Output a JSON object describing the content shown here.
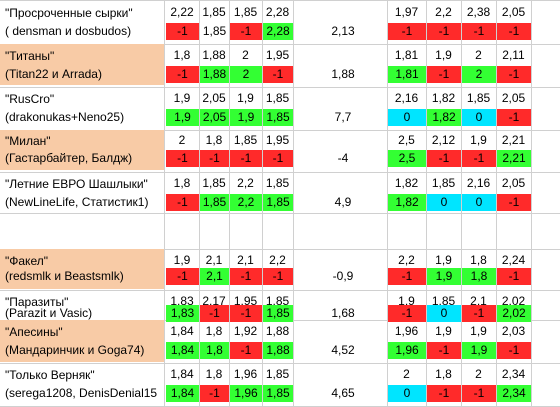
{
  "colors": {
    "orange": "#f8cba6",
    "red": "#ff2a2a",
    "green": "#33ff33",
    "cyan": "#00e5ff",
    "white": "#ffffff"
  },
  "teams": [
    {
      "name": "\"Просроченные сырки\"",
      "players": "( densman и dosbudos)",
      "highlight": false,
      "left_odds": [
        "2,22",
        "1,85",
        "1,85",
        "2,28"
      ],
      "left_results": [
        {
          "v": "-1",
          "c": "red"
        },
        {
          "v": "1,85",
          "c": "white"
        },
        {
          "v": "-1",
          "c": "red"
        },
        {
          "v": "2,28",
          "c": "green"
        }
      ],
      "total": "2,13",
      "right_odds": [
        "1,97",
        "2,2",
        "2,38",
        "2,05"
      ],
      "right_results": [
        {
          "v": "-1",
          "c": "red"
        },
        {
          "v": "-1",
          "c": "red"
        },
        {
          "v": "-1",
          "c": "red"
        },
        {
          "v": "-1",
          "c": "red"
        }
      ]
    },
    {
      "name": "\"Титаны\"",
      "players": "(Titan22 и Arrada)",
      "highlight": true,
      "left_odds": [
        "1,8",
        "1,88",
        "2",
        "1,95"
      ],
      "left_results": [
        {
          "v": "-1",
          "c": "red"
        },
        {
          "v": "1,88",
          "c": "green"
        },
        {
          "v": "2",
          "c": "green"
        },
        {
          "v": "-1",
          "c": "red"
        }
      ],
      "total": "1,88",
      "right_odds": [
        "1,81",
        "1,9",
        "2",
        "2,11"
      ],
      "right_results": [
        {
          "v": "1,81",
          "c": "green"
        },
        {
          "v": "-1",
          "c": "red"
        },
        {
          "v": "2",
          "c": "green"
        },
        {
          "v": "-1",
          "c": "red"
        }
      ]
    },
    {
      "name": "\"RusCro\"",
      "players": "(drakonukas+Neno25)",
      "highlight": false,
      "left_odds": [
        "1,9",
        "2,05",
        "1,9",
        "1,85"
      ],
      "left_results": [
        {
          "v": "1,9",
          "c": "green"
        },
        {
          "v": "2,05",
          "c": "green"
        },
        {
          "v": "1,9",
          "c": "green"
        },
        {
          "v": "1,85",
          "c": "green"
        }
      ],
      "total": "7,7",
      "right_odds": [
        "2,16",
        "1,82",
        "1,85",
        "2,05"
      ],
      "right_results": [
        {
          "v": "0",
          "c": "cyan"
        },
        {
          "v": "1,82",
          "c": "green"
        },
        {
          "v": "0",
          "c": "cyan"
        },
        {
          "v": "-1",
          "c": "red"
        }
      ]
    },
    {
      "name": "\"Милан\"",
      "players": "(Гастарбайтер, Балдж)",
      "highlight": true,
      "left_odds": [
        "2",
        "1,8",
        "1,85",
        "1,95"
      ],
      "left_results": [
        {
          "v": "-1",
          "c": "red"
        },
        {
          "v": "-1",
          "c": "red"
        },
        {
          "v": "-1",
          "c": "red"
        },
        {
          "v": "-1",
          "c": "red"
        }
      ],
      "total": "-4",
      "right_odds": [
        "2,5",
        "2,12",
        "1,9",
        "2,21"
      ],
      "right_results": [
        {
          "v": "2,5",
          "c": "green"
        },
        {
          "v": "-1",
          "c": "red"
        },
        {
          "v": "-1",
          "c": "red"
        },
        {
          "v": "2,21",
          "c": "green"
        }
      ]
    },
    {
      "name": "\"Летние ЕВРО Шашлыки\"",
      "players": "(NewLineLife, Статистик1)",
      "highlight": false,
      "left_odds": [
        "1,8",
        "1,85",
        "2,2",
        "1,85"
      ],
      "left_results": [
        {
          "v": "-1",
          "c": "red"
        },
        {
          "v": "1,85",
          "c": "green"
        },
        {
          "v": "2,2",
          "c": "green"
        },
        {
          "v": "1,85",
          "c": "green"
        }
      ],
      "total": "4,9",
      "right_odds": [
        "1,82",
        "1,85",
        "2,16",
        "2,05"
      ],
      "right_results": [
        {
          "v": "1,82",
          "c": "green"
        },
        {
          "v": "0",
          "c": "cyan"
        },
        {
          "v": "0",
          "c": "cyan"
        },
        {
          "v": "-1",
          "c": "red"
        }
      ]
    },
    {
      "name": "\"Факел\"",
      "players": "(redsmlk и Beastsmlk)",
      "highlight": true,
      "left_odds": [
        "1,9",
        "2,1",
        "2,1",
        "2,2"
      ],
      "left_results": [
        {
          "v": "-1",
          "c": "red"
        },
        {
          "v": "2,1",
          "c": "green"
        },
        {
          "v": "-1",
          "c": "red"
        },
        {
          "v": "-1",
          "c": "red"
        }
      ],
      "total": "-0,9",
      "right_odds": [
        "2,2",
        "1,9",
        "1,8",
        "2,24"
      ],
      "right_results": [
        {
          "v": "-1",
          "c": "red"
        },
        {
          "v": "1,9",
          "c": "green"
        },
        {
          "v": "1,8",
          "c": "green"
        },
        {
          "v": "-1",
          "c": "red"
        }
      ]
    },
    {
      "name": "\"Паразиты\"",
      "players": "(Parazit и Vasic)",
      "highlight": false,
      "left_odds": [
        "1,83",
        "2,17",
        "1,95",
        "1,85"
      ],
      "left_results": [
        {
          "v": "1,83",
          "c": "green"
        },
        {
          "v": "-1",
          "c": "red"
        },
        {
          "v": "-1",
          "c": "red"
        },
        {
          "v": "1,85",
          "c": "green"
        }
      ],
      "total": "1,68",
      "right_odds": [
        "1,9",
        "1,85",
        "2,1",
        "2,02"
      ],
      "right_results": [
        {
          "v": "-1",
          "c": "red"
        },
        {
          "v": "0",
          "c": "cyan"
        },
        {
          "v": "-1",
          "c": "red"
        },
        {
          "v": "2,02",
          "c": "green"
        }
      ]
    },
    {
      "name": "\"Апесины\"",
      "players": "(Мандаринчик и Goga74)",
      "highlight": true,
      "left_odds": [
        "1,84",
        "1,8",
        "1,92",
        "1,88"
      ],
      "left_results": [
        {
          "v": "1,84",
          "c": "green"
        },
        {
          "v": "1,8",
          "c": "green"
        },
        {
          "v": "-1",
          "c": "red"
        },
        {
          "v": "1,88",
          "c": "green"
        }
      ],
      "total": "4,52",
      "right_odds": [
        "1,96",
        "1,9",
        "1,9",
        "2,03"
      ],
      "right_results": [
        {
          "v": "1,96",
          "c": "green"
        },
        {
          "v": "-1",
          "c": "red"
        },
        {
          "v": "1,9",
          "c": "green"
        },
        {
          "v": "-1",
          "c": "red"
        }
      ]
    },
    {
      "name": "\"Только Верняк\"",
      "players": "(serega1208, DenisDenial15",
      "highlight": false,
      "left_odds": [
        "1,84",
        "1,8",
        "1,96",
        "1,85"
      ],
      "left_results": [
        {
          "v": "1,84",
          "c": "green"
        },
        {
          "v": "-1",
          "c": "red"
        },
        {
          "v": "1,96",
          "c": "green"
        },
        {
          "v": "1,85",
          "c": "green"
        }
      ],
      "total": "4,65",
      "right_odds": [
        "2",
        "1,8",
        "2",
        "2,34"
      ],
      "right_results": [
        {
          "v": "0",
          "c": "cyan"
        },
        {
          "v": "-1",
          "c": "red"
        },
        {
          "v": "-1",
          "c": "red"
        },
        {
          "v": "2,34",
          "c": "green"
        }
      ]
    }
  ]
}
